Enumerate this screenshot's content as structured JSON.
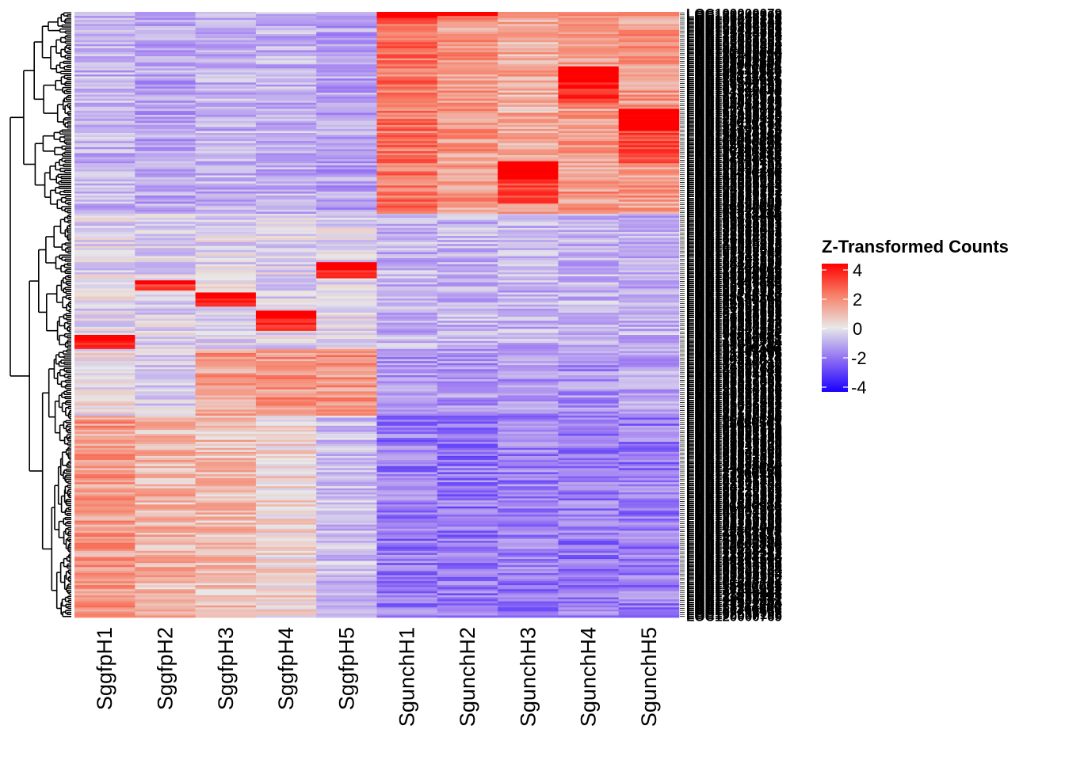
{
  "chart_data": {
    "type": "heatmap",
    "title": "",
    "xlabel": "",
    "ylabel": "",
    "columns": [
      "SggfpH1",
      "SggfpH2",
      "SggfpH3",
      "SggfpH4",
      "SggfpH5",
      "SgunchH1",
      "SgunchH2",
      "SgunchH3",
      "SgunchH4",
      "SgunchH5"
    ],
    "row_count": 300,
    "row_label_prefix": "LOC1",
    "row_labels_first": "LOC100000079",
    "row_labels_last": "LOC120000769",
    "row_dendrogram": true,
    "column_dendrogram": false,
    "color_scale": {
      "name": "Z-Transformed Counts",
      "min": -4,
      "max": 4,
      "ticks": [
        4,
        2,
        0,
        -2,
        -4
      ],
      "low_color": "#1a00ff",
      "mid_color": "#e8e8e8",
      "high_color": "#ff0000"
    },
    "legend_position": "right",
    "blocks": [
      {
        "rows": [
          0,
          100
        ],
        "pattern": "Sgunch high, Sggfp low",
        "values": [
          -1,
          -1.3,
          -1,
          -1,
          -1.3,
          2.2,
          1.5,
          1.2,
          1.5,
          1.5
        ]
      },
      {
        "rows": [
          0,
          6
        ],
        "peak_column": "SgunchH1",
        "value": 4
      },
      {
        "rows": [
          0,
          2
        ],
        "peak_column": "SgunchH2",
        "value": 4
      },
      {
        "rows": [
          27,
          45
        ],
        "peak_column": "SgunchH4",
        "value": 4
      },
      {
        "rows": [
          48,
          75
        ],
        "peak_column": "SgunchH5",
        "value": 3.5
      },
      {
        "rows": [
          74,
          95
        ],
        "peak_column": "SgunchH3",
        "value": 3.5
      },
      {
        "rows": [
          124,
          132
        ],
        "peak_column": "SggfpH5",
        "value": 3.8
      },
      {
        "rows": [
          133,
          138
        ],
        "peak_column": "SggfpH2",
        "value": 3.6
      },
      {
        "rows": [
          139,
          146
        ],
        "peak_column": "SggfpH3",
        "value": 4
      },
      {
        "rows": [
          148,
          158
        ],
        "peak_column": "SggfpH4",
        "value": 4
      },
      {
        "rows": [
          160,
          167
        ],
        "peak_column": "SggfpH1",
        "value": 3.8
      },
      {
        "rows": [
          167,
          200
        ],
        "pattern": "Sggfp H3-H5 mid-high, Sgunch low",
        "values": [
          0,
          -0.5,
          1.5,
          1.6,
          1.6,
          -1.5,
          -1.5,
          -1.5,
          -1.6,
          -1.2
        ]
      },
      {
        "rows": [
          200,
          300
        ],
        "pattern": "Sggfp H1-H3 high, Sgunch low",
        "values": [
          1.5,
          1.0,
          0.8,
          0.3,
          -0.8,
          -2.0,
          -2.1,
          -1.9,
          -2.0,
          -2.0
        ]
      }
    ]
  }
}
